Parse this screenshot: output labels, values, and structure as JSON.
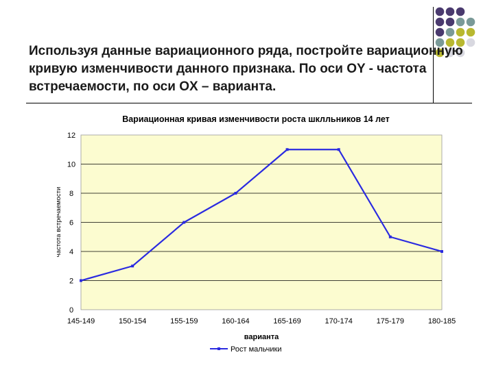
{
  "slide": {
    "instruction": "Используя данные вариационного ряда, постройте вариационную кривую изменчивости данного признака. По оси OY - частота встречаемости, по оси OX – варианта."
  },
  "decor": {
    "dot_colors": [
      "#4a3a6e",
      "#7a9a98",
      "#b8b830",
      "#d8d8e0"
    ]
  },
  "chart_data": {
    "type": "line",
    "title": "Вариационная кривая изменчивости роста шклльников 14 лет",
    "xlabel": "варианта",
    "ylabel": "частота встречаемости",
    "categories": [
      "145-149",
      "150-154",
      "155-159",
      "160-164",
      "165-169",
      "170-174",
      "175-179",
      "180-185"
    ],
    "series": [
      {
        "name": "Рост мальчики",
        "values": [
          2,
          3,
          6,
          8,
          11,
          11,
          5,
          4
        ],
        "color": "#2a2ae0"
      }
    ],
    "ylim": [
      0,
      12
    ],
    "yticks": [
      0,
      2,
      4,
      6,
      8,
      10,
      12
    ],
    "grid": true,
    "plot_background": "#fcfcd0",
    "legend": "bottom"
  }
}
